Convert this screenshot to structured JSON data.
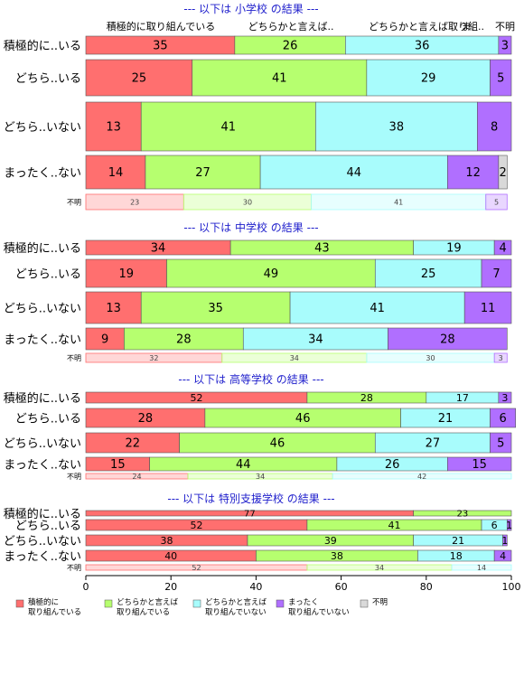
{
  "chart_data": {
    "type": "bar",
    "orientation": "horizontal",
    "stacked": "percent",
    "xlim": [
      0,
      100
    ],
    "xticks": [
      0,
      20,
      40,
      60,
      80,
      100
    ],
    "top_labels": [
      "積極的に取り組んでいる",
      "どちらかと言えば..",
      "どちらかと言えば取り組..",
      "ま",
      "不明"
    ],
    "series_colors": [
      "#FF6F6F",
      "#B6FF6F",
      "#A8FCFC",
      "#B06FFF",
      "#D9D9D9"
    ],
    "panels": [
      {
        "title": "--- 以下は 小学校 の結果 ---",
        "rows": [
          {
            "label": "積極的に..いる",
            "values": [
              35,
              26,
              36,
              3,
              0
            ],
            "shown": [
              "35",
              "26",
              "36",
              "3",
              ""
            ]
          },
          {
            "label": "どちら..いる",
            "values": [
              25,
              41,
              29,
              5,
              0
            ],
            "shown": [
              "25",
              "41",
              "29",
              "5",
              ""
            ]
          },
          {
            "label": "どちら..いない",
            "values": [
              13,
              41,
              38,
              8,
              0
            ],
            "shown": [
              "13",
              "41",
              "38",
              "8",
              ""
            ]
          },
          {
            "label": "まったく..ない",
            "values": [
              14,
              27,
              44,
              12,
              2
            ],
            "shown": [
              "14",
              "27",
              "44",
              "12",
              "2"
            ]
          },
          {
            "label": "不明",
            "values": [
              23,
              30,
              41,
              5,
              0
            ],
            "shown": [
              "23",
              "30",
              "41",
              "5",
              ""
            ]
          }
        ]
      },
      {
        "title": "--- 以下は 中学校 の結果 ---",
        "rows": [
          {
            "label": "積極的に..いる",
            "values": [
              34,
              43,
              19,
              4,
              0
            ],
            "shown": [
              "34",
              "43",
              "19",
              "4",
              ""
            ]
          },
          {
            "label": "どちら..いる",
            "values": [
              19,
              49,
              25,
              7,
              0
            ],
            "shown": [
              "19",
              "49",
              "25",
              "7",
              ""
            ]
          },
          {
            "label": "どちら..いない",
            "values": [
              13,
              35,
              41,
              11,
              0
            ],
            "shown": [
              "13",
              "35",
              "41",
              "11",
              ""
            ]
          },
          {
            "label": "まったく..ない",
            "values": [
              9,
              28,
              34,
              28,
              0
            ],
            "shown": [
              "9",
              "28",
              "34",
              "28",
              ""
            ]
          },
          {
            "label": "不明",
            "values": [
              32,
              34,
              30,
              3,
              0
            ],
            "shown": [
              "32",
              "34",
              "30",
              "3",
              ""
            ]
          }
        ]
      },
      {
        "title": "--- 以下は 高等学校 の結果 ---",
        "rows": [
          {
            "label": "積極的に..いる",
            "values": [
              52,
              28,
              17,
              3,
              0
            ],
            "shown": [
              "52",
              "28",
              "17",
              "3",
              ""
            ]
          },
          {
            "label": "どちら..いる",
            "values": [
              28,
              46,
              21,
              6,
              0
            ],
            "shown": [
              "28",
              "46",
              "21",
              "6",
              ""
            ]
          },
          {
            "label": "どちら..いない",
            "values": [
              22,
              46,
              27,
              5,
              0
            ],
            "shown": [
              "22",
              "46",
              "27",
              "5",
              ""
            ]
          },
          {
            "label": "まったく..ない",
            "values": [
              15,
              44,
              26,
              15,
              0
            ],
            "shown": [
              "15",
              "44",
              "26",
              "15",
              ""
            ]
          },
          {
            "label": "不明",
            "values": [
              24,
              34,
              42,
              0,
              0
            ],
            "shown": [
              "24",
              "34",
              "42",
              "",
              ""
            ]
          }
        ]
      },
      {
        "title": "--- 以下は 特別支援学校 の結果 ---",
        "rows": [
          {
            "label": "積極的に..いる",
            "values": [
              77,
              23,
              0,
              0,
              0
            ],
            "shown": [
              "77",
              "23",
              "",
              "",
              ""
            ]
          },
          {
            "label": "どちら..いる",
            "values": [
              52,
              41,
              6,
              1,
              0
            ],
            "shown": [
              "52",
              "41",
              "6",
              "1",
              ""
            ]
          },
          {
            "label": "どちら..いない",
            "values": [
              38,
              39,
              21,
              1,
              0
            ],
            "shown": [
              "38",
              "39",
              "21",
              "1",
              ""
            ]
          },
          {
            "label": "まったく..ない",
            "values": [
              40,
              38,
              18,
              4,
              0
            ],
            "shown": [
              "40",
              "38",
              "18",
              "4",
              ""
            ]
          },
          {
            "label": "不明",
            "values": [
              52,
              34,
              14,
              0,
              0
            ],
            "shown": [
              "52",
              "34",
              "14",
              "",
              ""
            ]
          }
        ]
      }
    ],
    "legend": [
      {
        "label": "積極的に\n取り組んでいる",
        "color": "#FF6F6F"
      },
      {
        "label": "どちらかと言えば\n取り組んでいる",
        "color": "#B6FF6F"
      },
      {
        "label": "どちらかと言えば\n取り組んでいない",
        "color": "#A8FCFC"
      },
      {
        "label": "まったく\n取り組んでいない",
        "color": "#B06FFF"
      },
      {
        "label": "不明",
        "color": "#D9D9D9"
      }
    ],
    "legend_position": "bottom",
    "title_color": "#1F1FCC"
  }
}
